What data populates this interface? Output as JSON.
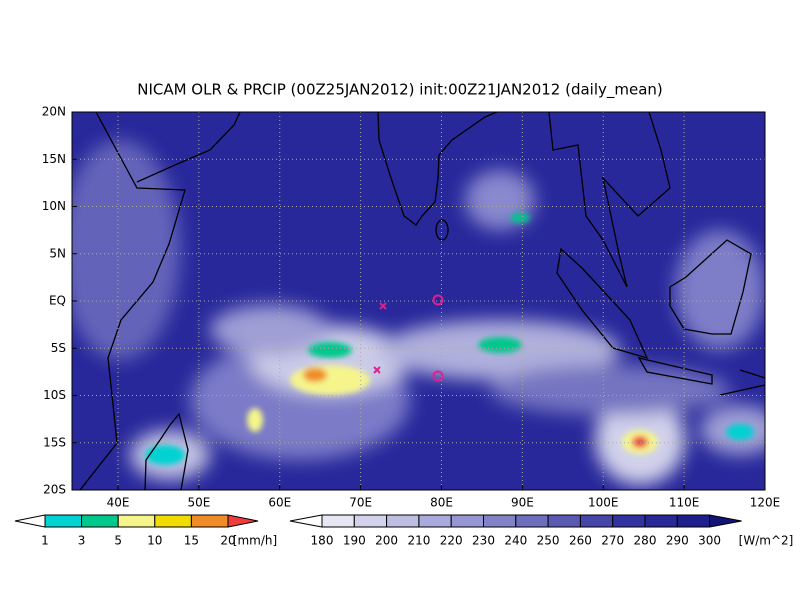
{
  "map": {
    "title": "NICAM OLR & PRCIP (00Z25JAN2012) init:00Z21JAN2012 (daily_mean)",
    "lat_labels": [
      "20N",
      "15N",
      "10N",
      "5N",
      "EQ",
      "5S",
      "10S",
      "15S",
      "20S"
    ],
    "lon_labels": [
      "40E",
      "50E",
      "60E",
      "70E",
      "80E",
      "90E",
      "100E",
      "110E",
      "120E"
    ],
    "precip_colorbar": {
      "levels": [
        1,
        3,
        5,
        10,
        15,
        20
      ],
      "colors": [
        "#ffffff",
        "#00d2d2",
        "#00c88c",
        "#f5f58c",
        "#f0dc00",
        "#f08c28",
        "#f03c3c"
      ],
      "unit": "[mm/h]"
    },
    "olr_colorbar": {
      "levels": [
        180,
        190,
        200,
        210,
        220,
        230,
        240,
        250,
        260,
        270,
        280,
        290,
        300
      ],
      "colors": [
        "#ffffff",
        "#e6e6f5",
        "#d2d2ec",
        "#bebee3",
        "#aaaadc",
        "#9696d2",
        "#8282c8",
        "#6e6ebe",
        "#5a5ab4",
        "#4646aa",
        "#3232a0",
        "#282896",
        "#1e1e8c",
        "#141478"
      ],
      "unit": "[W/m^2]"
    }
  }
}
